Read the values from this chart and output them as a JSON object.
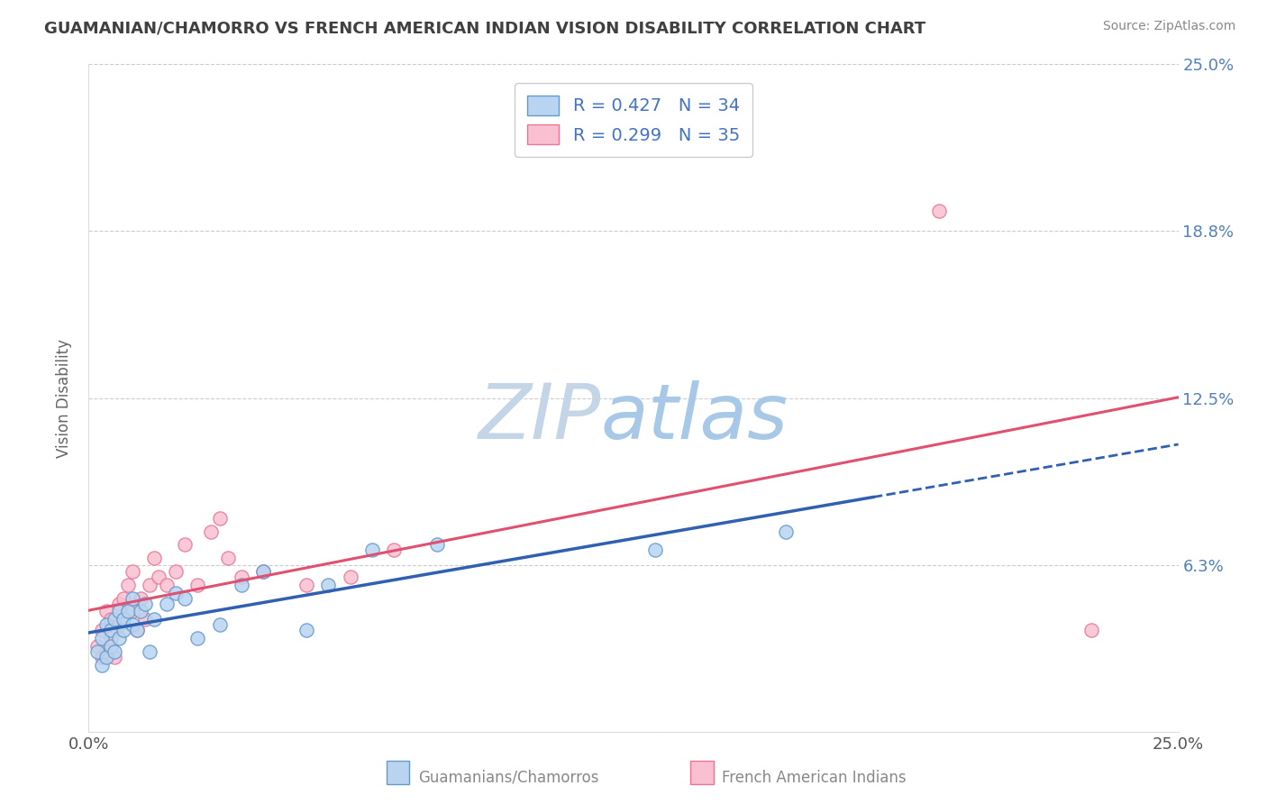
{
  "title": "GUAMANIAN/CHAMORRO VS FRENCH AMERICAN INDIAN VISION DISABILITY CORRELATION CHART",
  "source": "Source: ZipAtlas.com",
  "ylabel": "Vision Disability",
  "xlim": [
    0.0,
    0.25
  ],
  "ylim": [
    0.0,
    0.25
  ],
  "ytick_values": [
    0.0,
    0.0625,
    0.125,
    0.1875,
    0.25
  ],
  "series1_color": "#b8d4f0",
  "series1_edge": "#6699cc",
  "series2_color": "#f8c0d0",
  "series2_edge": "#e87898",
  "trendline1_color": "#3060b0",
  "trendline2_color": "#e05070",
  "background_color": "#ffffff",
  "grid_color": "#cccccc",
  "title_color": "#404040",
  "watermark_color_zip": "#c8d8f0",
  "watermark_color_atlas": "#c0d0e8",
  "legend_text_color": "#4472c4",
  "right_axis_label_color": "#5080c0",
  "bottom_label_color": "#888888",
  "source_color": "#888888",
  "R1": 0.427,
  "N1": 34,
  "R2": 0.299,
  "N2": 35,
  "series1_x": [
    0.002,
    0.003,
    0.003,
    0.004,
    0.004,
    0.005,
    0.005,
    0.006,
    0.006,
    0.007,
    0.007,
    0.008,
    0.008,
    0.009,
    0.01,
    0.01,
    0.011,
    0.012,
    0.013,
    0.014,
    0.015,
    0.018,
    0.02,
    0.022,
    0.025,
    0.03,
    0.035,
    0.04,
    0.05,
    0.055,
    0.065,
    0.08,
    0.13,
    0.16
  ],
  "series1_y": [
    0.03,
    0.025,
    0.035,
    0.028,
    0.04,
    0.032,
    0.038,
    0.03,
    0.042,
    0.035,
    0.045,
    0.038,
    0.042,
    0.045,
    0.04,
    0.05,
    0.038,
    0.045,
    0.048,
    0.03,
    0.042,
    0.048,
    0.052,
    0.05,
    0.035,
    0.04,
    0.055,
    0.06,
    0.038,
    0.055,
    0.068,
    0.07,
    0.068,
    0.075
  ],
  "series2_x": [
    0.002,
    0.003,
    0.003,
    0.004,
    0.004,
    0.005,
    0.005,
    0.006,
    0.007,
    0.007,
    0.008,
    0.008,
    0.009,
    0.01,
    0.01,
    0.011,
    0.012,
    0.013,
    0.014,
    0.015,
    0.016,
    0.018,
    0.02,
    0.022,
    0.025,
    0.028,
    0.03,
    0.032,
    0.035,
    0.04,
    0.05,
    0.06,
    0.07,
    0.195,
    0.23
  ],
  "series2_y": [
    0.032,
    0.028,
    0.038,
    0.03,
    0.045,
    0.035,
    0.042,
    0.028,
    0.048,
    0.04,
    0.05,
    0.042,
    0.055,
    0.045,
    0.06,
    0.038,
    0.05,
    0.042,
    0.055,
    0.065,
    0.058,
    0.055,
    0.06,
    0.07,
    0.055,
    0.075,
    0.08,
    0.065,
    0.058,
    0.06,
    0.055,
    0.058,
    0.068,
    0.195,
    0.038
  ]
}
